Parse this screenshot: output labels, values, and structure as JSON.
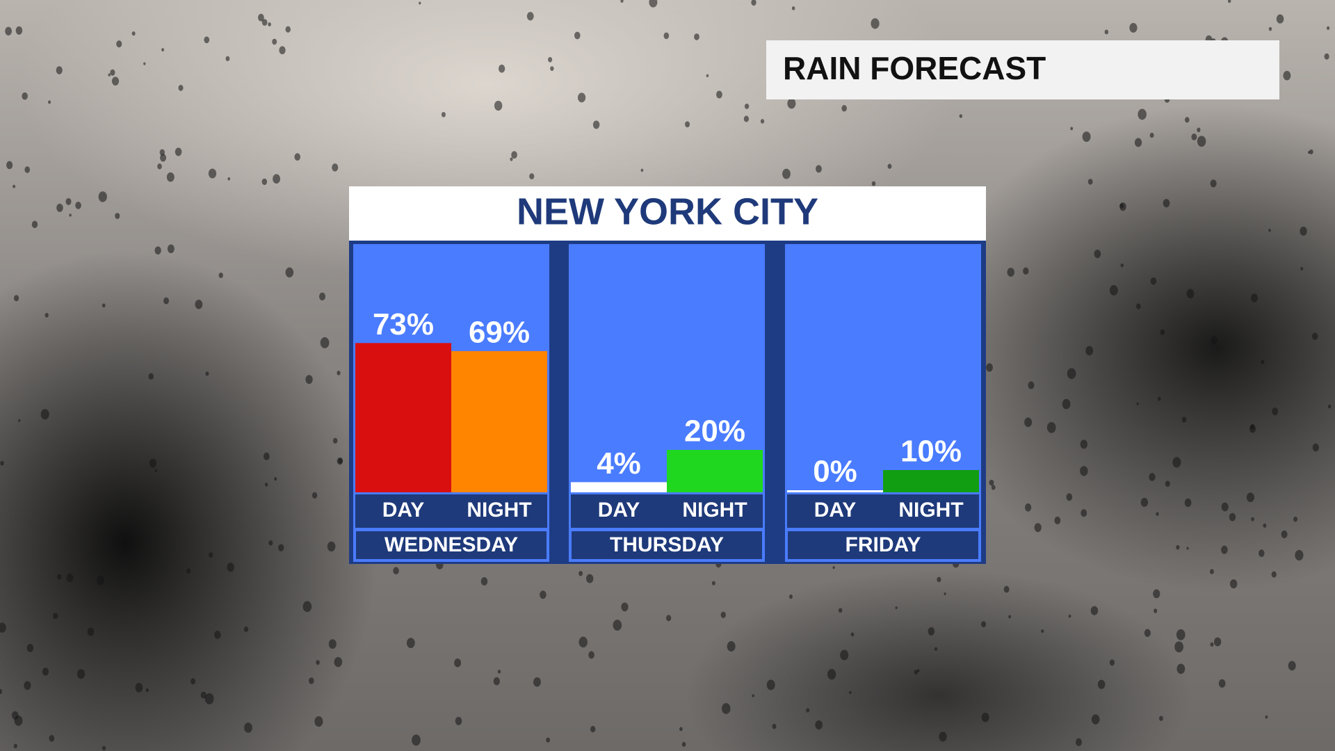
{
  "header": "RAIN FORECAST",
  "chart_data": {
    "type": "bar",
    "title": "NEW YORK CITY",
    "categories": [
      "WEDNESDAY",
      "THURSDAY",
      "FRIDAY"
    ],
    "series": [
      {
        "name": "DAY",
        "values": [
          73,
          4,
          0
        ],
        "value_labels": [
          "73%",
          "4%",
          "0%"
        ],
        "colors": [
          "#d90f0f",
          "#ffffff",
          "#ffffff"
        ]
      },
      {
        "name": "NIGHT",
        "values": [
          69,
          20,
          10
        ],
        "value_labels": [
          "69%",
          "20%",
          "10%"
        ],
        "colors": [
          "#ff8400",
          "#1fd71f",
          "#129e12"
        ]
      }
    ]
  }
}
